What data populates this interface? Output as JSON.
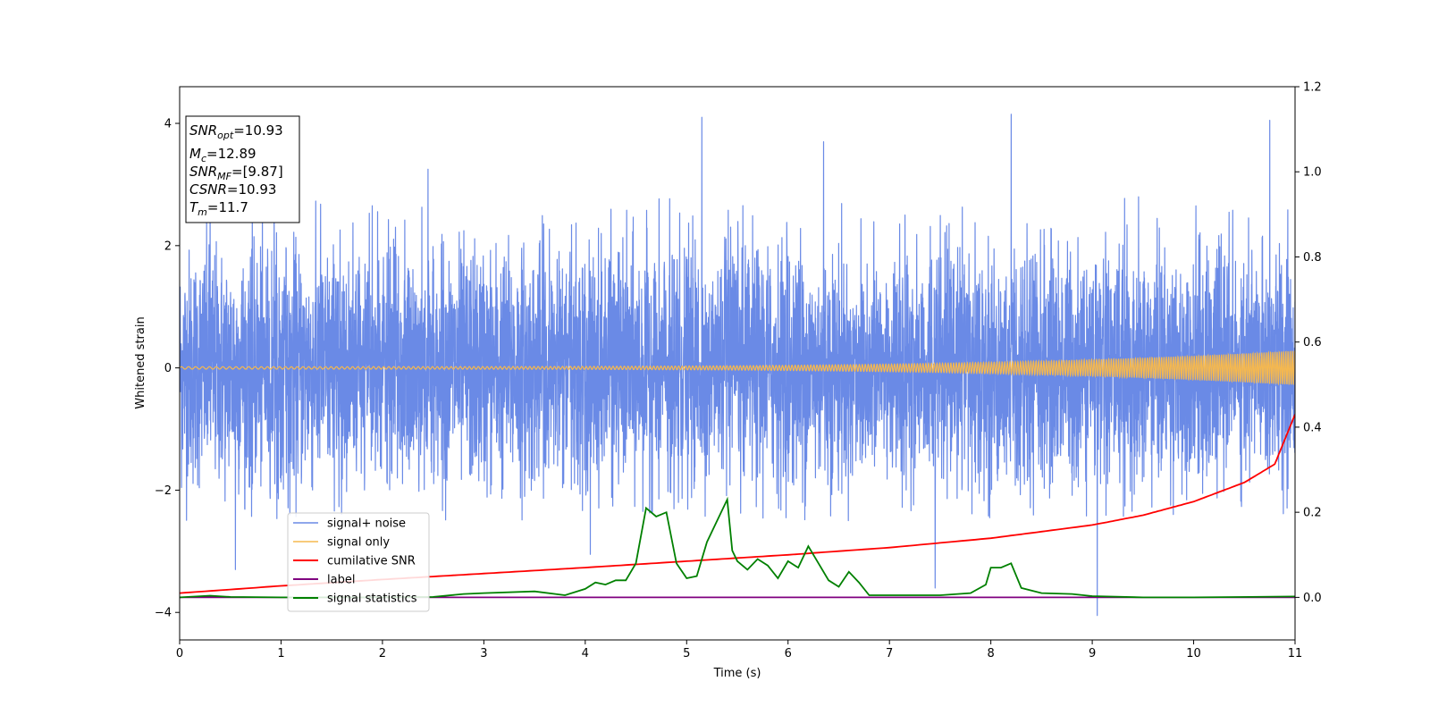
{
  "chart_data": {
    "type": "line",
    "title": "",
    "xlabel": "Time (s)",
    "ylabel": "Whitened strain",
    "xlim": [
      0,
      11
    ],
    "ylim": [
      -4.45,
      4.6
    ],
    "y2lim": [
      -0.1,
      1.2
    ],
    "x_ticks": [
      0,
      1,
      2,
      3,
      4,
      5,
      6,
      7,
      8,
      9,
      10,
      11
    ],
    "y_ticks": [
      -4,
      -2,
      0,
      2,
      4
    ],
    "y2_ticks": [
      0.0,
      0.2,
      0.4,
      0.6,
      0.8,
      1.0,
      1.2
    ],
    "x_tick_labels": [
      "0",
      "1",
      "2",
      "3",
      "4",
      "5",
      "6",
      "7",
      "8",
      "9",
      "10",
      "11"
    ],
    "y_tick_labels": [
      "−4",
      "−2",
      "0",
      "2",
      "4"
    ],
    "y2_tick_labels": [
      "0.0",
      "0.2",
      "0.4",
      "0.6",
      "0.8",
      "1.0",
      "1.2"
    ],
    "grid": false,
    "legend_placement": "lower-left",
    "series": [
      {
        "name": "signal+ noise",
        "color": "#6a8ae6",
        "axis": "left",
        "kind": "noise",
        "std": 0.95,
        "typical_min": -2.5,
        "typical_max": 2.8,
        "peaks": [
          [
            5.15,
            4.1
          ],
          [
            8.2,
            4.15
          ],
          [
            10.75,
            4.05
          ],
          [
            6.35,
            3.7
          ],
          [
            2.45,
            3.25
          ],
          [
            0.3,
            3.0
          ],
          [
            9.05,
            -4.05
          ],
          [
            0.55,
            -3.3
          ],
          [
            7.45,
            -3.6
          ],
          [
            4.05,
            -3.05
          ]
        ]
      },
      {
        "name": "signal only",
        "color": "#f5b84f",
        "axis": "left",
        "kind": "chirp",
        "amplitude_start": 0.02,
        "amplitude_end": 0.28
      },
      {
        "name": "cumilative SNR",
        "color": "#ff0000",
        "axis": "right",
        "x": [
          0,
          1,
          2,
          3,
          4,
          5,
          6,
          7,
          8,
          9,
          9.5,
          10,
          10.5,
          10.8,
          11
        ],
        "values": [
          0.01,
          0.027,
          0.042,
          0.056,
          0.07,
          0.085,
          0.1,
          0.117,
          0.139,
          0.17,
          0.193,
          0.225,
          0.27,
          0.313,
          0.43
        ]
      },
      {
        "name": "label",
        "color": "#800080",
        "axis": "right",
        "x": [
          0,
          11
        ],
        "values": [
          0,
          0
        ]
      },
      {
        "name": "signal statistics",
        "color": "#008000",
        "axis": "right",
        "x": [
          0,
          0.3,
          0.5,
          1,
          2,
          2.5,
          2.8,
          3,
          3.5,
          3.8,
          4.0,
          4.1,
          4.2,
          4.3,
          4.4,
          4.5,
          4.6,
          4.7,
          4.8,
          4.9,
          5.0,
          5.1,
          5.2,
          5.3,
          5.4,
          5.45,
          5.5,
          5.6,
          5.7,
          5.8,
          5.9,
          6.0,
          6.1,
          6.2,
          6.3,
          6.4,
          6.5,
          6.6,
          6.7,
          6.8,
          7.0,
          7.5,
          7.8,
          7.95,
          8.0,
          8.1,
          8.2,
          8.3,
          8.5,
          8.8,
          9.0,
          9.5,
          10,
          11
        ],
        "values": [
          0,
          0.004,
          0.001,
          0,
          0,
          0.001,
          0.008,
          0.01,
          0.014,
          0.005,
          0.02,
          0.035,
          0.03,
          0.04,
          0.04,
          0.08,
          0.21,
          0.19,
          0.2,
          0.08,
          0.045,
          0.05,
          0.13,
          0.18,
          0.23,
          0.11,
          0.085,
          0.065,
          0.09,
          0.075,
          0.045,
          0.085,
          0.07,
          0.12,
          0.08,
          0.04,
          0.025,
          0.06,
          0.035,
          0.005,
          0.005,
          0.005,
          0.01,
          0.03,
          0.07,
          0.07,
          0.08,
          0.022,
          0.01,
          0.008,
          0.003,
          0,
          0,
          0.002
        ]
      }
    ],
    "annotation": {
      "lines": [
        {
          "var": "SNR",
          "sub": "opt",
          "value": "=10.93"
        },
        {
          "var": "M",
          "sub": "c",
          "value": "=12.89"
        },
        {
          "var": "SNR",
          "sub": "MF",
          "value": "=[9.87]"
        },
        {
          "var": "CSNR",
          "sub": "",
          "value": "=10.93"
        },
        {
          "var": "T",
          "sub": "m",
          "value": "=11.7"
        }
      ]
    }
  }
}
